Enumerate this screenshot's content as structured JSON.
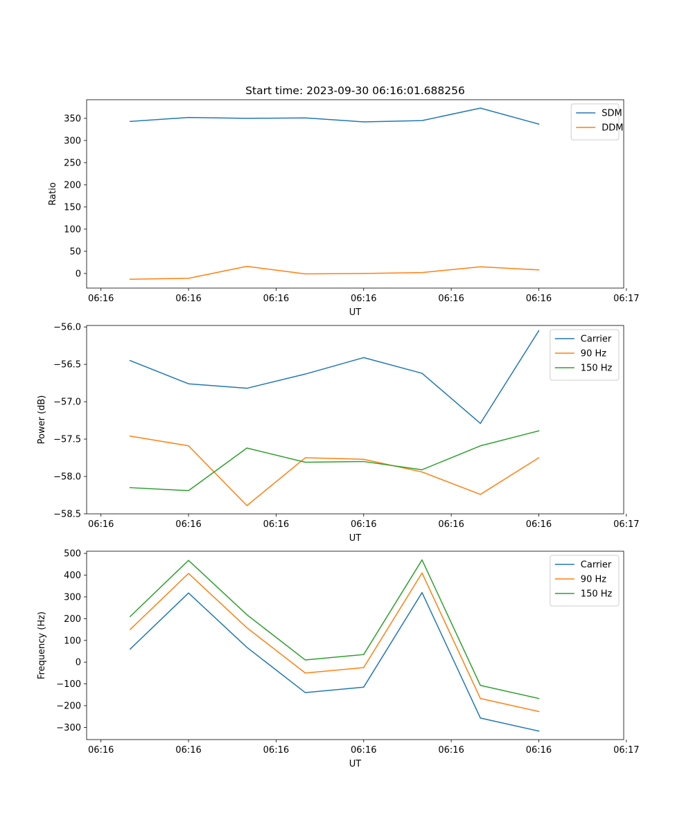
{
  "chart_data": [
    {
      "type": "line",
      "title": "Start time: 2023-09-30 06:16:01.688256",
      "xlabel": "UT",
      "ylabel": "Ratio",
      "x": [
        1,
        2,
        3,
        4,
        5,
        6,
        7,
        8
      ],
      "xlim": [
        0.2545,
        9.4545
      ],
      "x_ticks": [
        0.5,
        2,
        3.5,
        5,
        6.5,
        8,
        9.5
      ],
      "x_tick_labels": [
        "06:16",
        "06:16",
        "06:16",
        "06:16",
        "06:16",
        "06:16",
        "06:17"
      ],
      "ylim": [
        -33,
        392
      ],
      "y_ticks": [
        0,
        50,
        100,
        150,
        200,
        250,
        300,
        350
      ],
      "y_tick_labels": [
        "0",
        "50",
        "100",
        "150",
        "200",
        "250",
        "300",
        "350"
      ],
      "legend_position": "top-right",
      "series": [
        {
          "name": "SDM",
          "color": "#1f77b4",
          "values": [
            343,
            352,
            350,
            351,
            342,
            345,
            373,
            337
          ]
        },
        {
          "name": "DDM",
          "color": "#ff7f0e",
          "values": [
            -13,
            -11,
            16,
            -1,
            0,
            2,
            15,
            8
          ]
        }
      ]
    },
    {
      "type": "line",
      "title": "",
      "xlabel": "UT",
      "ylabel": "Power (dB)",
      "x": [
        1,
        2,
        3,
        4,
        5,
        6,
        7,
        8
      ],
      "xlim": [
        0.2545,
        9.4545
      ],
      "x_ticks": [
        0.5,
        2,
        3.5,
        5,
        6.5,
        8,
        9.5
      ],
      "x_tick_labels": [
        "06:16",
        "06:16",
        "06:16",
        "06:16",
        "06:16",
        "06:16",
        "06:17"
      ],
      "ylim": [
        -58.5,
        -55.98
      ],
      "y_ticks": [
        -58.5,
        -58.0,
        -57.5,
        -57.0,
        -56.5,
        -56.0
      ],
      "y_tick_labels": [
        "−58.5",
        "−58.0",
        "−57.5",
        "−57.0",
        "−56.5",
        "−56.0"
      ],
      "legend_position": "top-right",
      "series": [
        {
          "name": "Carrier",
          "color": "#1f77b4",
          "values": [
            -56.45,
            -56.76,
            -56.82,
            -56.63,
            -56.41,
            -56.62,
            -57.29,
            -56.05
          ]
        },
        {
          "name": "90 Hz",
          "color": "#ff7f0e",
          "values": [
            -57.46,
            -57.59,
            -58.39,
            -57.75,
            -57.77,
            -57.94,
            -58.24,
            -57.75
          ]
        },
        {
          "name": "150 Hz",
          "color": "#2ca02c",
          "values": [
            -58.15,
            -58.19,
            -57.62,
            -57.81,
            -57.8,
            -57.91,
            -57.59,
            -57.39
          ]
        }
      ]
    },
    {
      "type": "line",
      "title": "",
      "xlabel": "UT",
      "ylabel": "Frequency (Hz)",
      "x": [
        1,
        2,
        3,
        4,
        5,
        6,
        7,
        8
      ],
      "xlim": [
        0.2545,
        9.4545
      ],
      "x_ticks": [
        0.5,
        2,
        3.5,
        5,
        6.5,
        8,
        9.5
      ],
      "x_tick_labels": [
        "06:16",
        "06:16",
        "06:16",
        "06:16",
        "06:16",
        "06:16",
        "06:17"
      ],
      "ylim": [
        -356,
        510
      ],
      "y_ticks": [
        -300,
        -200,
        -100,
        0,
        100,
        200,
        300,
        400,
        500
      ],
      "y_tick_labels": [
        "−300",
        "−200",
        "−100",
        "0",
        "100",
        "200",
        "300",
        "400",
        "500"
      ],
      "legend_position": "top-right",
      "series": [
        {
          "name": "Carrier",
          "color": "#1f77b4",
          "values": [
            60,
            318,
            68,
            -140,
            -115,
            320,
            -257,
            -317
          ]
        },
        {
          "name": "90 Hz",
          "color": "#ff7f0e",
          "values": [
            150,
            408,
            158,
            -50,
            -25,
            410,
            -167,
            -227
          ]
        },
        {
          "name": "150 Hz",
          "color": "#2ca02c",
          "values": [
            210,
            468,
            218,
            10,
            35,
            470,
            -107,
            -167
          ]
        }
      ]
    }
  ]
}
